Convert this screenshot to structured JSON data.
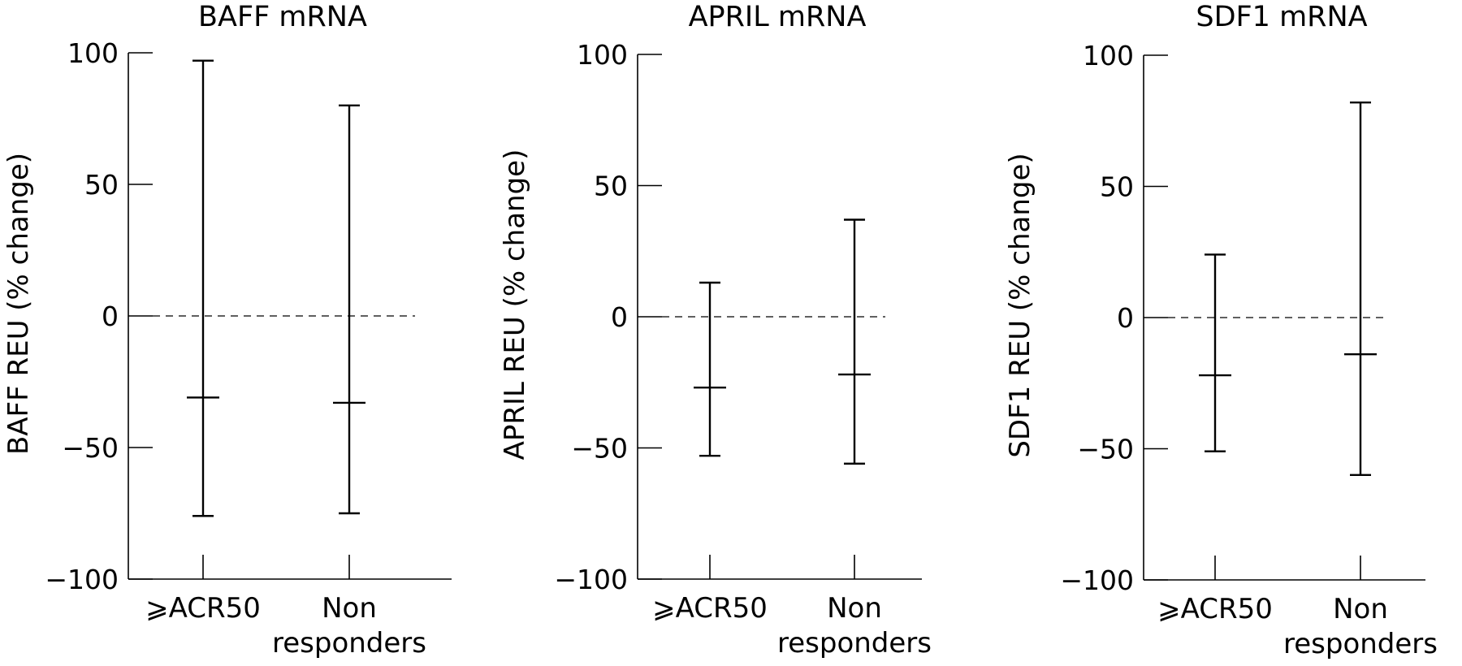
{
  "chart_data": [
    {
      "type": "errorbar",
      "title": "BAFF mRNA",
      "ylabel": "BAFF REU (% change)",
      "xlabel": "",
      "ylim": [
        -100,
        100
      ],
      "yticks": [
        "100",
        "50",
        "0",
        "−50",
        "−100"
      ],
      "reference_line": 0,
      "grid": false,
      "categories": [
        {
          "line1": "⩾ACR50",
          "line2": ""
        },
        {
          "line1": "Non",
          "line2": "responders"
        }
      ],
      "series": [
        {
          "values": [
            {
              "center": -31,
              "low": -76,
              "high": 97
            },
            {
              "center": -33,
              "low": -75,
              "high": 80
            }
          ]
        }
      ]
    },
    {
      "type": "errorbar",
      "title": "APRIL mRNA",
      "ylabel": "APRIL REU (% change)",
      "xlabel": "",
      "ylim": [
        -100,
        100
      ],
      "yticks": [
        "100",
        "50",
        "0",
        "−50",
        "−100"
      ],
      "reference_line": 0,
      "grid": false,
      "categories": [
        {
          "line1": "⩾ACR50",
          "line2": ""
        },
        {
          "line1": "Non",
          "line2": "responders"
        }
      ],
      "series": [
        {
          "values": [
            {
              "center": -27,
              "low": -53,
              "high": 13
            },
            {
              "center": -22,
              "low": -56,
              "high": 37
            }
          ]
        }
      ]
    },
    {
      "type": "errorbar",
      "title": "SDF1 mRNA",
      "ylabel": "SDF1 REU (% change)",
      "xlabel": "",
      "ylim": [
        -100,
        100
      ],
      "yticks": [
        "100",
        "50",
        "0",
        "−50",
        "−100"
      ],
      "reference_line": 0,
      "grid": false,
      "categories": [
        {
          "line1": "⩾ACR50",
          "line2": ""
        },
        {
          "line1": "Non",
          "line2": "responders"
        }
      ],
      "series": [
        {
          "values": [
            {
              "center": -22,
              "low": -51,
              "high": 24
            },
            {
              "center": -14,
              "low": -60,
              "high": 82
            }
          ]
        }
      ]
    }
  ],
  "colors": {
    "ink": "#000000",
    "background": "#ffffff"
  }
}
